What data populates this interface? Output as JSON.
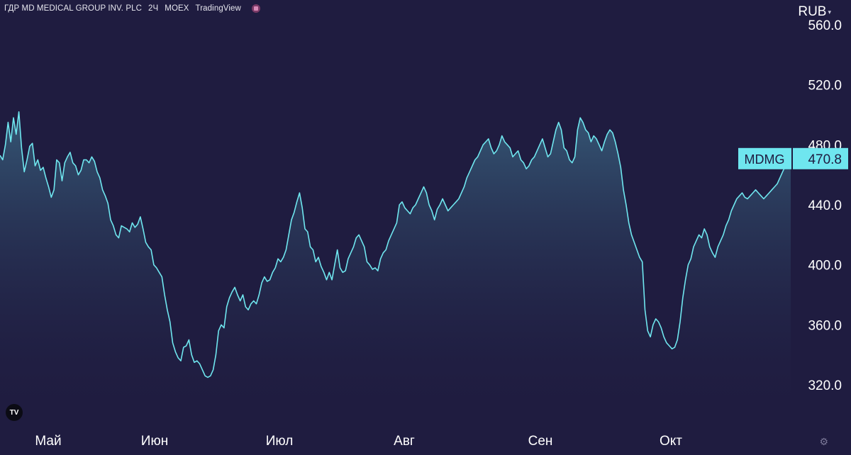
{
  "header": {
    "title": "ГДР MD MEDICAL GROUP INV. PLC",
    "interval": "2Ч",
    "exchange": "MOEX",
    "source": "TradingView"
  },
  "currency": "RUB",
  "colors": {
    "background": "#1f1c40",
    "line": "#6fe6ef",
    "label_bg": "#6fe6ef",
    "label_text": "#1f1c40",
    "axis_text": "#ffffff"
  },
  "icons": {
    "logo": "tradingview-logo-icon",
    "settings": "gear-icon",
    "currency_caret": "chevron-down-icon"
  },
  "logo_text": "TV",
  "chart_data": {
    "type": "area",
    "series": [
      {
        "name": "MDMG",
        "values": [
          473,
          470,
          480,
          495,
          482,
          498,
          487,
          502,
          478,
          462,
          470,
          479,
          481,
          466,
          470,
          463,
          465,
          458,
          452,
          445,
          450,
          470,
          468,
          456,
          468,
          472,
          475,
          468,
          466,
          460,
          463,
          470,
          470,
          468,
          472,
          469,
          462,
          458,
          450,
          446,
          441,
          430,
          426,
          420,
          418,
          426,
          425,
          424,
          422,
          428,
          425,
          427,
          432,
          424,
          415,
          412,
          410,
          400,
          398,
          395,
          392,
          380,
          370,
          362,
          348,
          342,
          338,
          336,
          345,
          346,
          350,
          340,
          335,
          336,
          334,
          330,
          326,
          325,
          326,
          330,
          340,
          356,
          360,
          358,
          372,
          378,
          382,
          385,
          380,
          376,
          380,
          372,
          370,
          374,
          376,
          374,
          380,
          388,
          392,
          389,
          390,
          395,
          398,
          404,
          402,
          405,
          410,
          420,
          430,
          435,
          442,
          448,
          438,
          424,
          422,
          412,
          410,
          402,
          405,
          399,
          395,
          390,
          395,
          390,
          400,
          410,
          398,
          395,
          396,
          404,
          408,
          412,
          418,
          420,
          416,
          412,
          402,
          400,
          397,
          398,
          396,
          404,
          408,
          410,
          416,
          420,
          424,
          428,
          440,
          442,
          438,
          436,
          434,
          438,
          440,
          444,
          448,
          452,
          448,
          440,
          436,
          430,
          437,
          440,
          444,
          440,
          436,
          438,
          440,
          442,
          444,
          448,
          452,
          458,
          462,
          466,
          470,
          472,
          476,
          480,
          482,
          484,
          478,
          474,
          476,
          480,
          486,
          482,
          480,
          478,
          472,
          474,
          476,
          470,
          468,
          464,
          466,
          470,
          472,
          476,
          480,
          484,
          478,
          472,
          474,
          482,
          490,
          495,
          490,
          478,
          476,
          470,
          468,
          472,
          490,
          498,
          495,
          490,
          488,
          482,
          486,
          484,
          480,
          476,
          482,
          487,
          490,
          488,
          482,
          474,
          465,
          450,
          440,
          428,
          420,
          415,
          410,
          405,
          402,
          370,
          356,
          352,
          360,
          364,
          362,
          358,
          352,
          348,
          346,
          344,
          345,
          350,
          362,
          378,
          390,
          400,
          404,
          412,
          416,
          420,
          418,
          424,
          420,
          412,
          408,
          405,
          412,
          416,
          420,
          426,
          430,
          436,
          440,
          444,
          446,
          448,
          445,
          444,
          446,
          448,
          450,
          448,
          446,
          444,
          446,
          448,
          450,
          452,
          454,
          458,
          462,
          466,
          468,
          470.8
        ]
      }
    ],
    "x_labels": [
      "Май",
      "Июн",
      "Июл",
      "Авг",
      "Сен",
      "Окт"
    ],
    "y_ticks": [
      "320.0",
      "360.0",
      "400.0",
      "440.0",
      "480.0",
      "520.0",
      "560.0"
    ],
    "ylim": [
      313,
      560
    ],
    "last_value_label": "470.8",
    "last_value_ticker": "MDMG",
    "grid": false
  }
}
